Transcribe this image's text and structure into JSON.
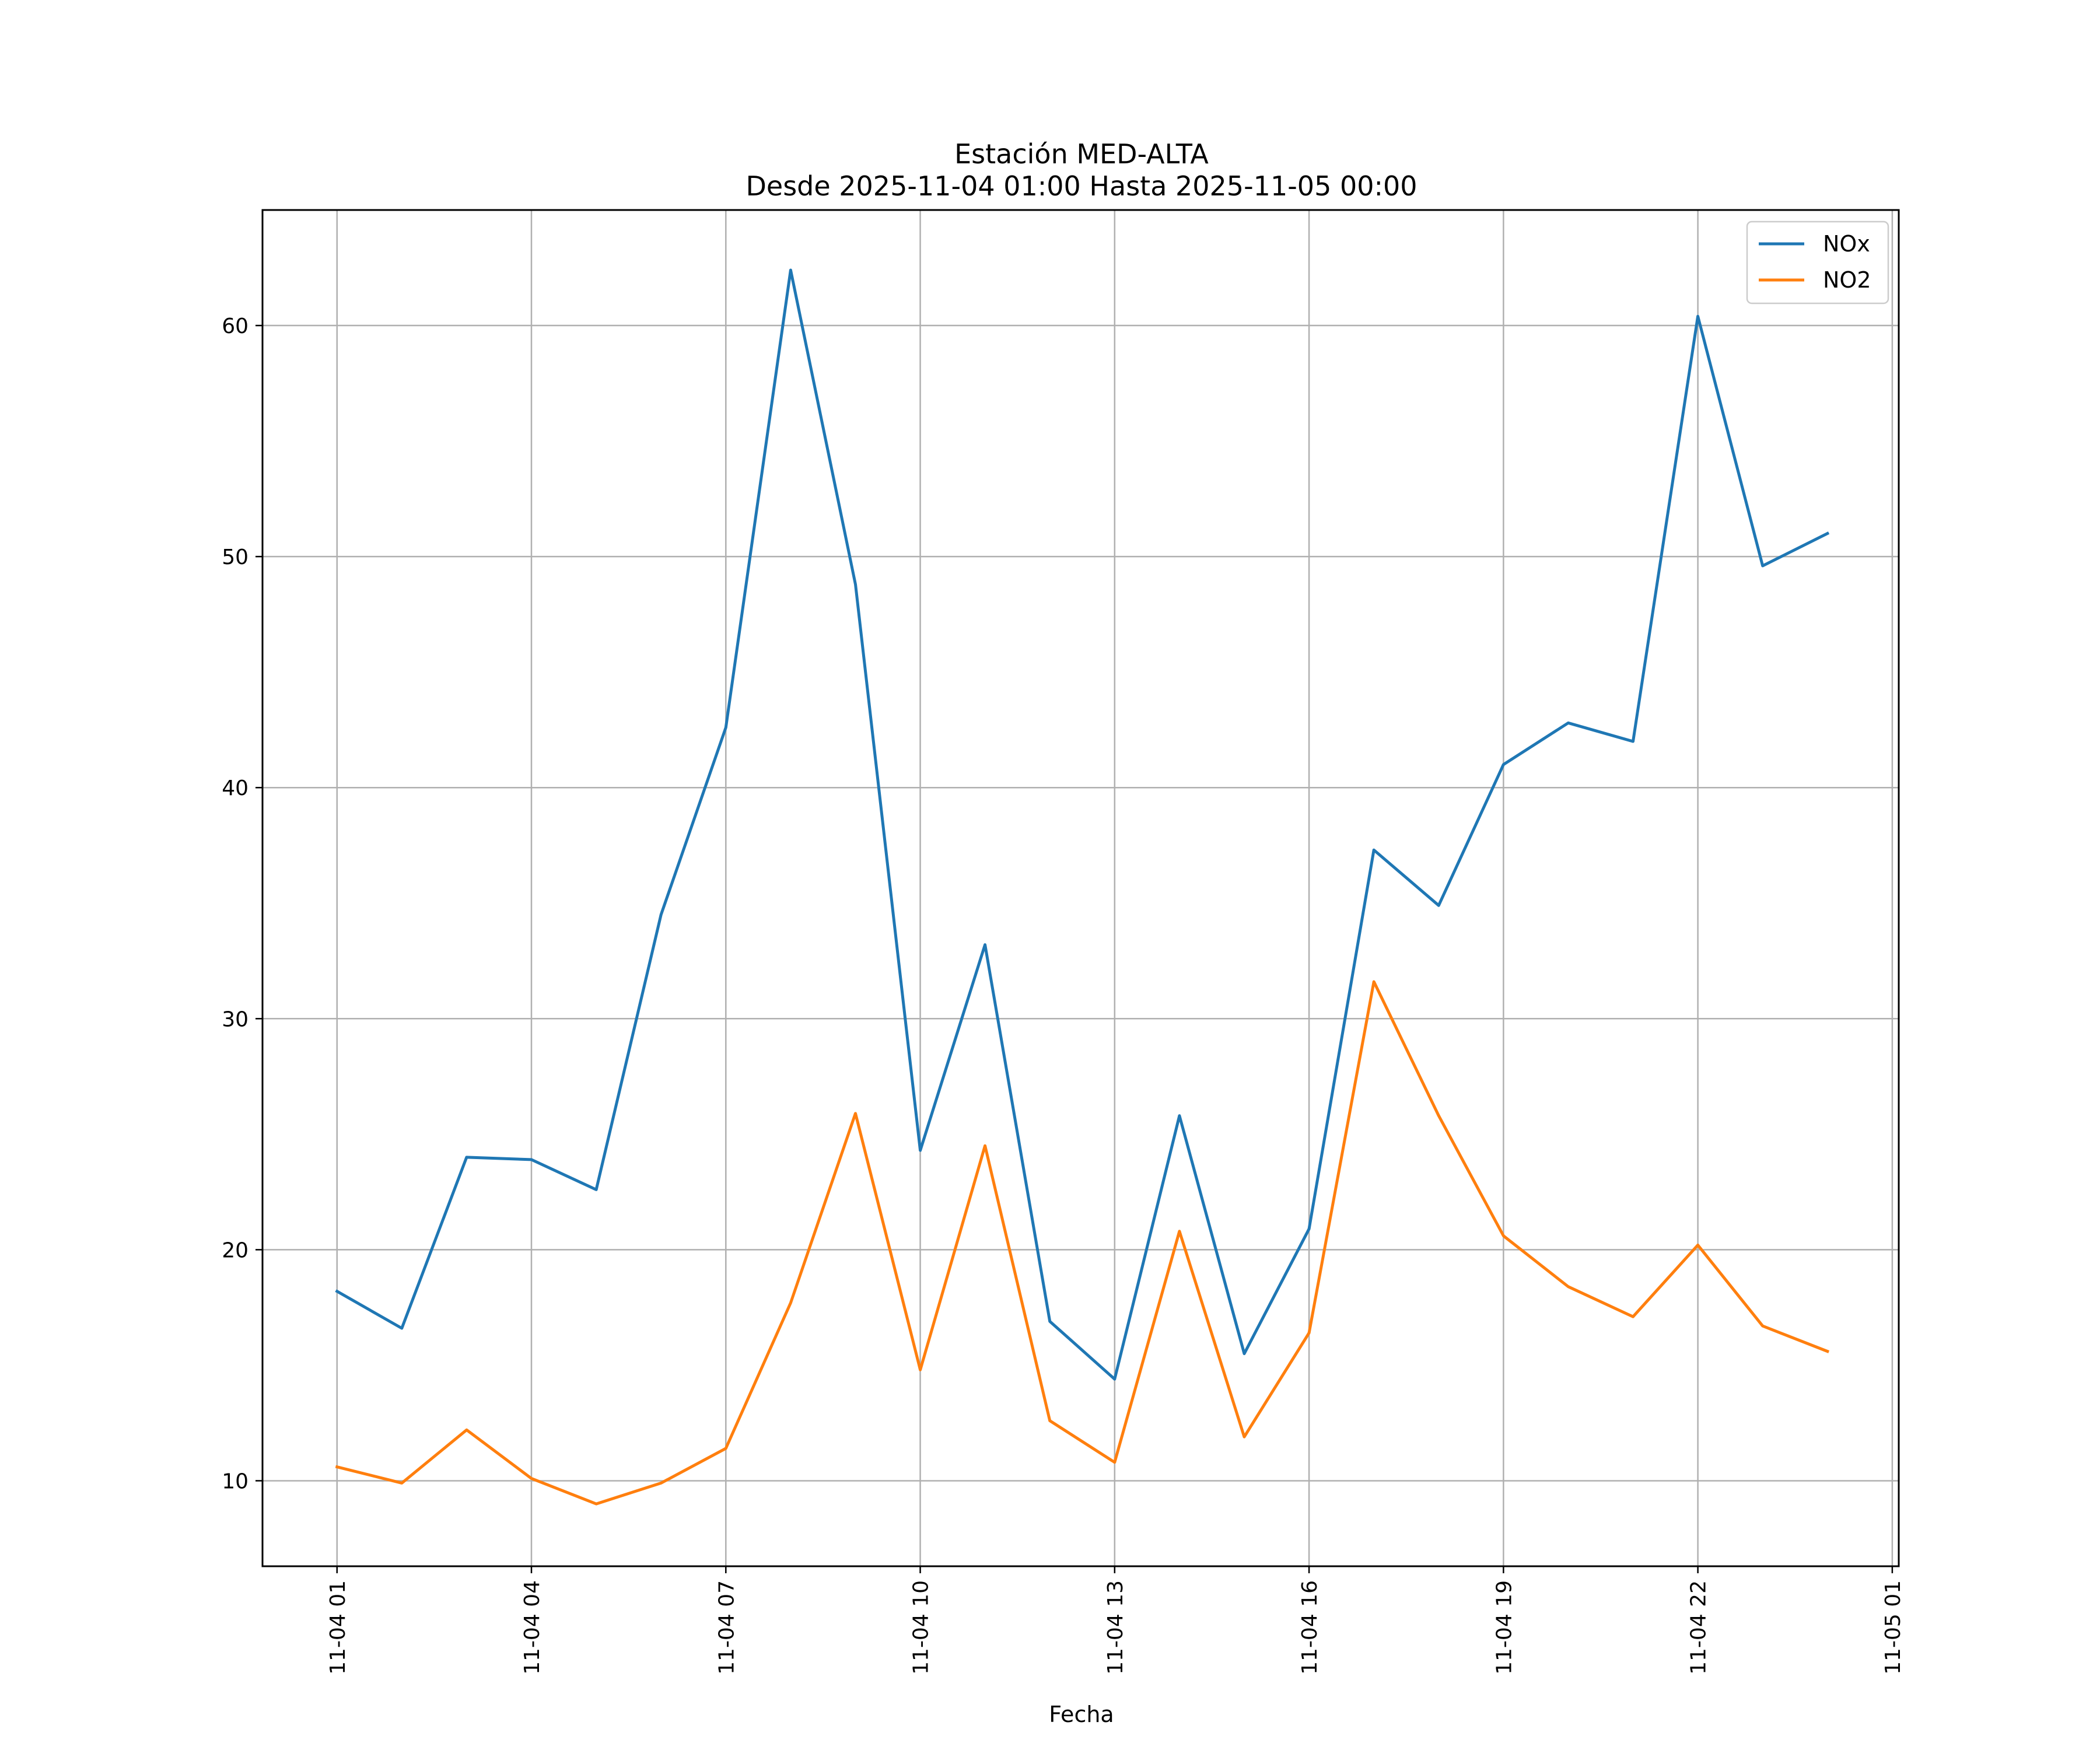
{
  "chart_data": {
    "type": "line",
    "title": "Estación MED-ALTA",
    "subtitle": "Desde 2025-11-04 01:00 Hasta 2025-11-05 00:00",
    "xlabel": "Fecha",
    "ylabel": "",
    "grid": true,
    "legend_position": "top-right",
    "x": [
      1,
      2,
      3,
      4,
      5,
      6,
      7,
      8,
      9,
      10,
      11,
      12,
      13,
      14,
      15,
      16,
      17,
      18,
      19,
      20,
      21,
      22,
      23,
      24
    ],
    "x_unit": "hours since 2025-11-04 00:00",
    "xlim": [
      -0.15,
      25.1
    ],
    "ylim": [
      6.3,
      65.0
    ],
    "x_ticks": [
      {
        "value": 1,
        "label": "11-04 01"
      },
      {
        "value": 4,
        "label": "11-04 04"
      },
      {
        "value": 7,
        "label": "11-04 07"
      },
      {
        "value": 10,
        "label": "11-04 10"
      },
      {
        "value": 13,
        "label": "11-04 13"
      },
      {
        "value": 16,
        "label": "11-04 16"
      },
      {
        "value": 19,
        "label": "11-04 19"
      },
      {
        "value": 22,
        "label": "11-04 22"
      },
      {
        "value": 25,
        "label": "11-05 01"
      }
    ],
    "y_ticks": [
      {
        "value": 10,
        "label": "10"
      },
      {
        "value": 20,
        "label": "20"
      },
      {
        "value": 30,
        "label": "30"
      },
      {
        "value": 40,
        "label": "40"
      },
      {
        "value": 50,
        "label": "50"
      },
      {
        "value": 60,
        "label": "60"
      }
    ],
    "series": [
      {
        "name": "NOx",
        "color": "#1f77b4",
        "values": [
          18.2,
          16.6,
          24.0,
          23.9,
          22.6,
          34.5,
          42.6,
          62.4,
          48.8,
          24.3,
          33.2,
          16.9,
          14.4,
          25.8,
          15.5,
          20.9,
          37.3,
          34.9,
          41.0,
          42.8,
          42.0,
          60.4,
          49.6,
          51.0
        ]
      },
      {
        "name": "NO2",
        "color": "#ff7f0e",
        "values": [
          10.6,
          9.9,
          12.2,
          10.1,
          9.0,
          9.9,
          11.4,
          17.7,
          25.9,
          14.8,
          24.5,
          12.6,
          10.8,
          20.8,
          11.9,
          16.4,
          31.6,
          25.8,
          20.6,
          18.4,
          17.1,
          20.2,
          16.7,
          15.6
        ]
      }
    ]
  }
}
